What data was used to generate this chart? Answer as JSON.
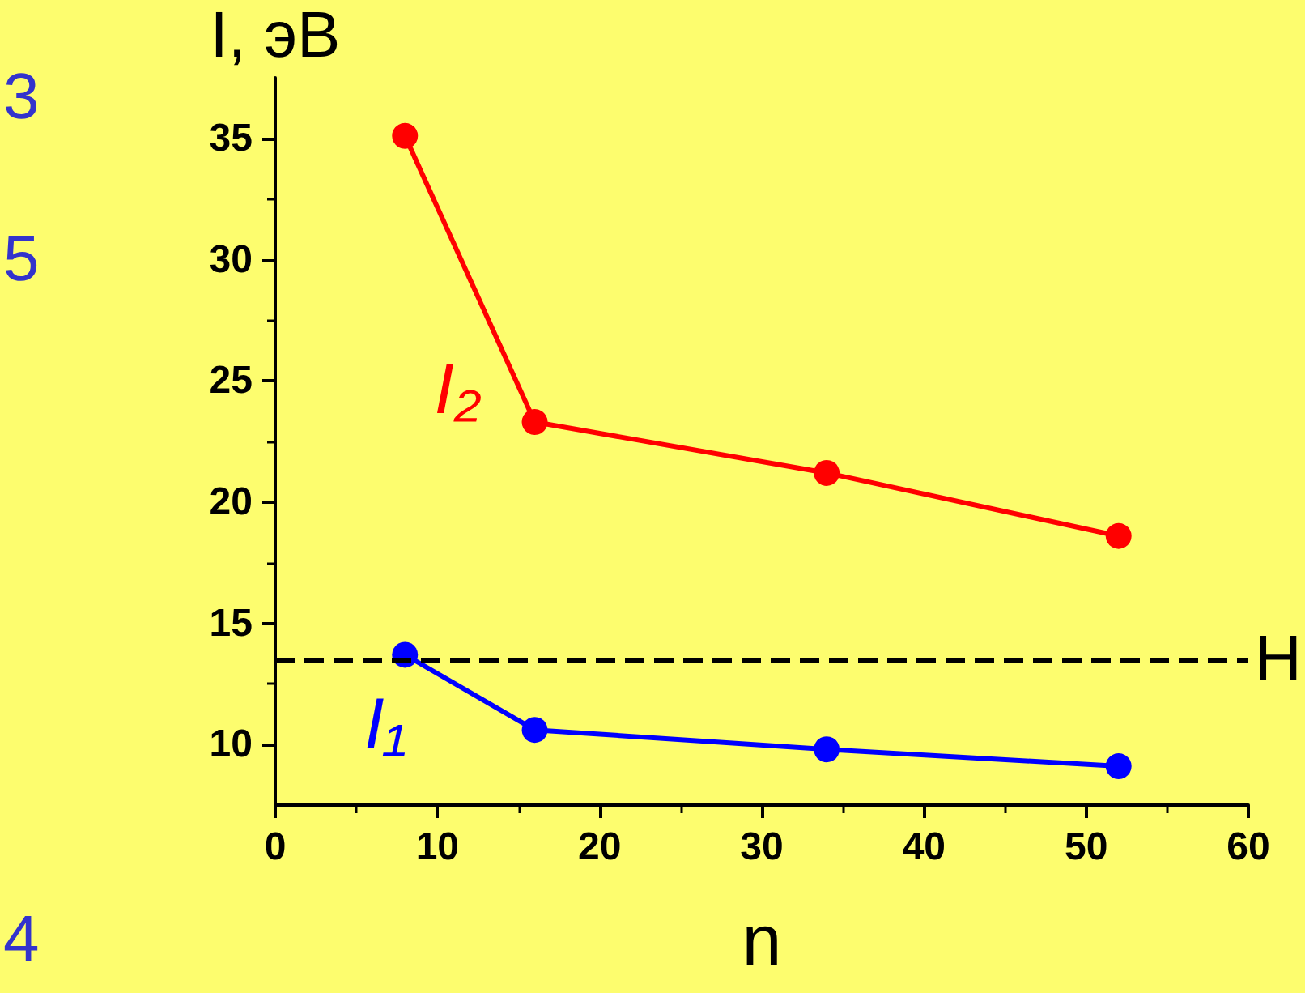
{
  "chart_data": {
    "type": "line",
    "xlabel": "n",
    "ylabel": "I, эВ",
    "xlim": [
      0,
      60
    ],
    "xticks": [
      0,
      10,
      20,
      30,
      40,
      50,
      60
    ],
    "ylim": [
      7.5,
      37.5
    ],
    "yticks": [
      10,
      15,
      20,
      25,
      30,
      35
    ],
    "x": [
      8,
      16,
      34,
      52
    ],
    "series": [
      {
        "name": "I₂",
        "color": "#ff0000",
        "values": [
          35.1,
          23.3,
          21.2,
          18.6
        ]
      },
      {
        "name": "I₁",
        "color": "#0000ff",
        "values": [
          13.7,
          10.6,
          9.8,
          9.1
        ]
      }
    ],
    "ref_lines": [
      {
        "axis": "y",
        "value": 13.5,
        "label": "H",
        "color": "#000000",
        "line_style": "dashed"
      }
    ],
    "annotations": [
      "3",
      "5",
      "4"
    ],
    "marker": "circle",
    "line_style": "solid",
    "grid": false,
    "legend": false
  }
}
